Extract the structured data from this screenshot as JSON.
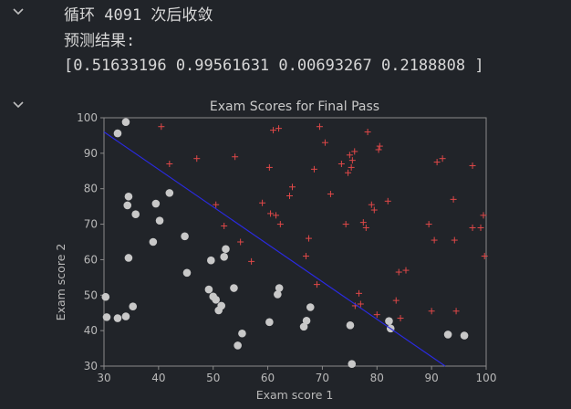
{
  "cells": [
    {
      "toggle_icon": "chevron-down-icon",
      "lines": [
        "循环 4091 次后收敛",
        "预测结果:",
        "[0.51633196 0.99561631 0.00693267 0.2188808 ]"
      ]
    },
    {
      "toggle_icon": "chevron-down-icon"
    }
  ],
  "colors": {
    "background": "#212429",
    "admitted": "#e04848",
    "not_admitted": "#c8c8c8",
    "boundary": "#2a2ae0",
    "axes": "#8a8a8a"
  },
  "chart_data": {
    "type": "scatter",
    "title": "Exam Scores for Final Pass",
    "xlabel": "Exam score 1",
    "ylabel": "Exam score 2",
    "xlim": [
      30,
      100
    ],
    "ylim": [
      30,
      100
    ],
    "xticks": [
      30,
      40,
      50,
      60,
      70,
      80,
      90,
      100
    ],
    "yticks": [
      30,
      40,
      50,
      60,
      70,
      80,
      90,
      100
    ],
    "grid": false,
    "series": [
      {
        "marker": "plus",
        "points": [
          [
            40.5,
            97.5
          ],
          [
            42,
            87
          ],
          [
            47,
            88.5
          ],
          [
            50.5,
            75.5
          ],
          [
            52,
            69.5
          ],
          [
            54,
            89
          ],
          [
            55,
            65
          ],
          [
            57,
            59.5
          ],
          [
            59,
            76
          ],
          [
            60.3,
            86
          ],
          [
            61,
            96.5
          ],
          [
            60.5,
            73
          ],
          [
            62,
            97
          ],
          [
            61.5,
            72.5
          ],
          [
            62.3,
            70
          ],
          [
            64,
            78
          ],
          [
            64.5,
            80.5
          ],
          [
            67,
            61
          ],
          [
            67.5,
            66
          ],
          [
            68.5,
            85.5
          ],
          [
            69,
            53
          ],
          [
            69.5,
            97.5
          ],
          [
            70.5,
            93
          ],
          [
            71.5,
            78.5
          ],
          [
            73.5,
            87
          ],
          [
            74.3,
            70
          ],
          [
            74.7,
            84.5
          ],
          [
            75,
            89.5
          ],
          [
            75.3,
            86
          ],
          [
            75.5,
            88
          ],
          [
            75.9,
            90.5
          ],
          [
            76,
            47
          ],
          [
            76.7,
            50.5
          ],
          [
            77,
            47.5
          ],
          [
            77.5,
            70.5
          ],
          [
            78,
            69
          ],
          [
            78.3,
            96
          ],
          [
            79,
            75.5
          ],
          [
            79.5,
            74
          ],
          [
            80,
            44.5
          ],
          [
            80.3,
            91
          ],
          [
            80.5,
            92
          ],
          [
            82,
            76.5
          ],
          [
            83.5,
            48.5
          ],
          [
            84,
            56.5
          ],
          [
            84.3,
            43.5
          ],
          [
            85.3,
            57
          ],
          [
            89.5,
            70
          ],
          [
            90,
            45.5
          ],
          [
            90.5,
            65.5
          ],
          [
            91,
            87.5
          ],
          [
            92,
            88.5
          ],
          [
            94,
            77
          ],
          [
            94.2,
            65.5
          ],
          [
            94.5,
            45.5
          ],
          [
            97.5,
            86.5
          ],
          [
            97.5,
            69
          ],
          [
            99,
            69
          ],
          [
            99.5,
            72.5
          ],
          [
            99.7,
            61
          ]
        ]
      },
      {
        "marker": "circle",
        "points": [
          [
            30.3,
            49.5
          ],
          [
            30.5,
            43.8
          ],
          [
            32.5,
            95.6
          ],
          [
            32.5,
            43.5
          ],
          [
            34,
            98.8
          ],
          [
            34,
            44
          ],
          [
            34.3,
            75.3
          ],
          [
            34.5,
            77.8
          ],
          [
            34.5,
            60.5
          ],
          [
            35.3,
            46.8
          ],
          [
            35.8,
            72.8
          ],
          [
            39,
            65
          ],
          [
            39.5,
            75.8
          ],
          [
            40.2,
            71
          ],
          [
            42,
            78.8
          ],
          [
            44.8,
            66.6
          ],
          [
            45.2,
            56.3
          ],
          [
            49.2,
            51.6
          ],
          [
            49.6,
            59.8
          ],
          [
            50,
            49.6
          ],
          [
            50.5,
            48.7
          ],
          [
            51,
            45.7
          ],
          [
            51.5,
            47
          ],
          [
            52,
            60.8
          ],
          [
            52.3,
            63
          ],
          [
            53.8,
            52
          ],
          [
            54.5,
            35.8
          ],
          [
            55.3,
            39.2
          ],
          [
            60.3,
            42.4
          ],
          [
            61.8,
            50.2
          ],
          [
            62.1,
            52
          ],
          [
            66.6,
            41.1
          ],
          [
            67.1,
            42.8
          ],
          [
            67.8,
            46.6
          ],
          [
            75.1,
            41.5
          ],
          [
            75.4,
            30.6
          ],
          [
            82.2,
            42.7
          ],
          [
            82.5,
            40.6
          ],
          [
            93,
            38.9
          ],
          [
            96,
            38.6
          ]
        ]
      }
    ],
    "decision_boundary": {
      "x": [
        30,
        92.5
      ],
      "y": [
        96,
        30
      ]
    }
  }
}
